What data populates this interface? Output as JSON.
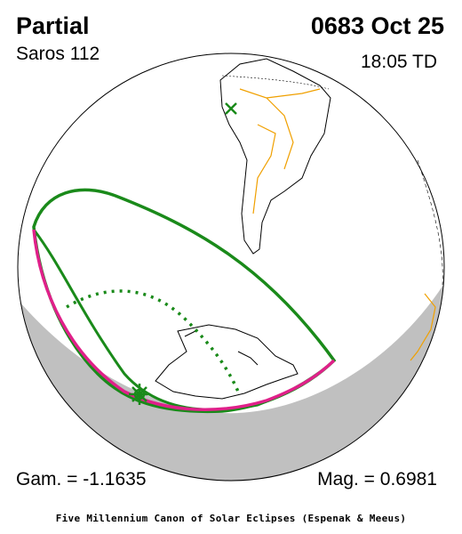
{
  "header": {
    "title": "Partial",
    "date": "0683 Oct 25",
    "saros": "Saros 112",
    "time": "18:05 TD"
  },
  "footer": {
    "gamma": "Gam. = -1.1635",
    "magnitude": "Mag. = 0.6981",
    "credit": "Five Millennium Canon of Solar Eclipses (Espenak & Meeus)"
  }
}
